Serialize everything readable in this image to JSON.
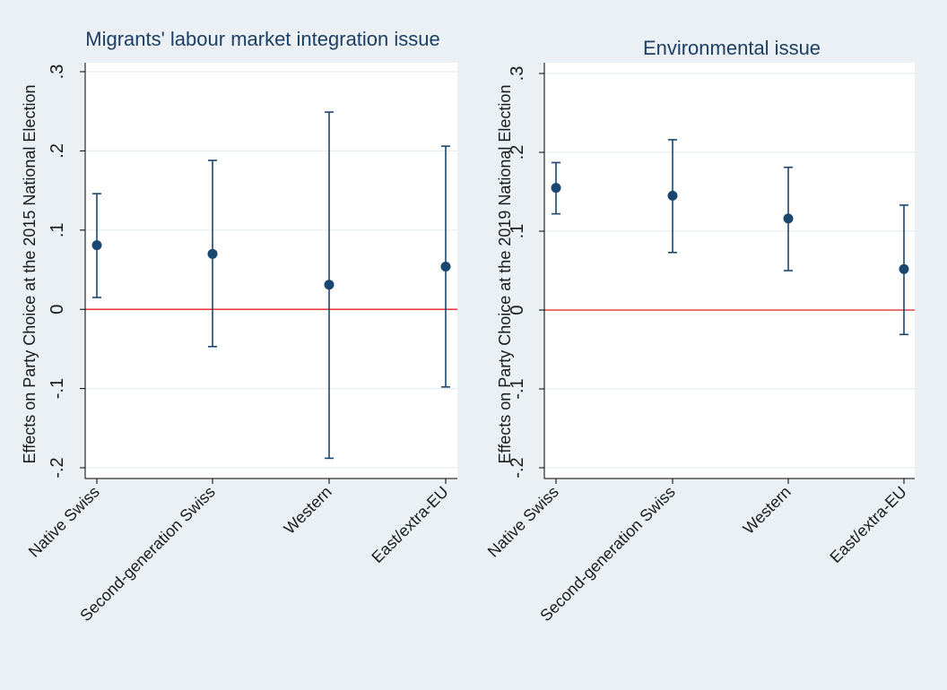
{
  "chart_data": [
    {
      "type": "scatter",
      "subtype": "point-estimate-with-confidence-intervals",
      "title": "Migrants' labour market integration issue",
      "xlabel": "",
      "ylabel": "Effects on Party Choice at the 2015 National Election",
      "categories": [
        "Native Swiss",
        "Second-generation Swiss",
        "Western",
        "East/extra-EU"
      ],
      "ylim": [
        -0.2,
        0.3
      ],
      "yticks": [
        -0.2,
        -0.1,
        0,
        0.1,
        0.2,
        0.3
      ],
      "ytick_labels": [
        "-.2",
        "-.1",
        "0",
        ".1",
        ".2",
        ".3"
      ],
      "grid": true,
      "reference_line": 0,
      "points": [
        {
          "estimate": 0.081,
          "lower": 0.015,
          "upper": 0.146
        },
        {
          "estimate": 0.07,
          "lower": -0.047,
          "upper": 0.188
        },
        {
          "estimate": 0.031,
          "lower": -0.188,
          "upper": 0.249
        },
        {
          "estimate": 0.054,
          "lower": -0.098,
          "upper": 0.206
        }
      ]
    },
    {
      "type": "scatter",
      "subtype": "point-estimate-with-confidence-intervals",
      "title": "Environmental issue",
      "xlabel": "",
      "ylabel": "Effects on Party Choice at the 2019 National Election",
      "categories": [
        "Native Swiss",
        "Second-generation Swiss",
        "Western",
        "East/extra-EU"
      ],
      "ylim": [
        -0.2,
        0.3
      ],
      "yticks": [
        -0.2,
        -0.1,
        0,
        0.1,
        0.2,
        0.3
      ],
      "ytick_labels": [
        "-.2",
        "-.1",
        "0",
        ".1",
        ".2",
        ".3"
      ],
      "grid": true,
      "reference_line": 0,
      "points": [
        {
          "estimate": 0.155,
          "lower": 0.122,
          "upper": 0.187
        },
        {
          "estimate": 0.145,
          "lower": 0.073,
          "upper": 0.216
        },
        {
          "estimate": 0.116,
          "lower": 0.05,
          "upper": 0.181
        },
        {
          "estimate": 0.052,
          "lower": -0.031,
          "upper": 0.133
        }
      ]
    }
  ],
  "colors": {
    "background": "#eaf0f3",
    "plot_background": "#ffffff",
    "gridline": "#e6eef2",
    "marker": "#1a476f",
    "reference_line": "#e02020",
    "axis": "#000000"
  }
}
